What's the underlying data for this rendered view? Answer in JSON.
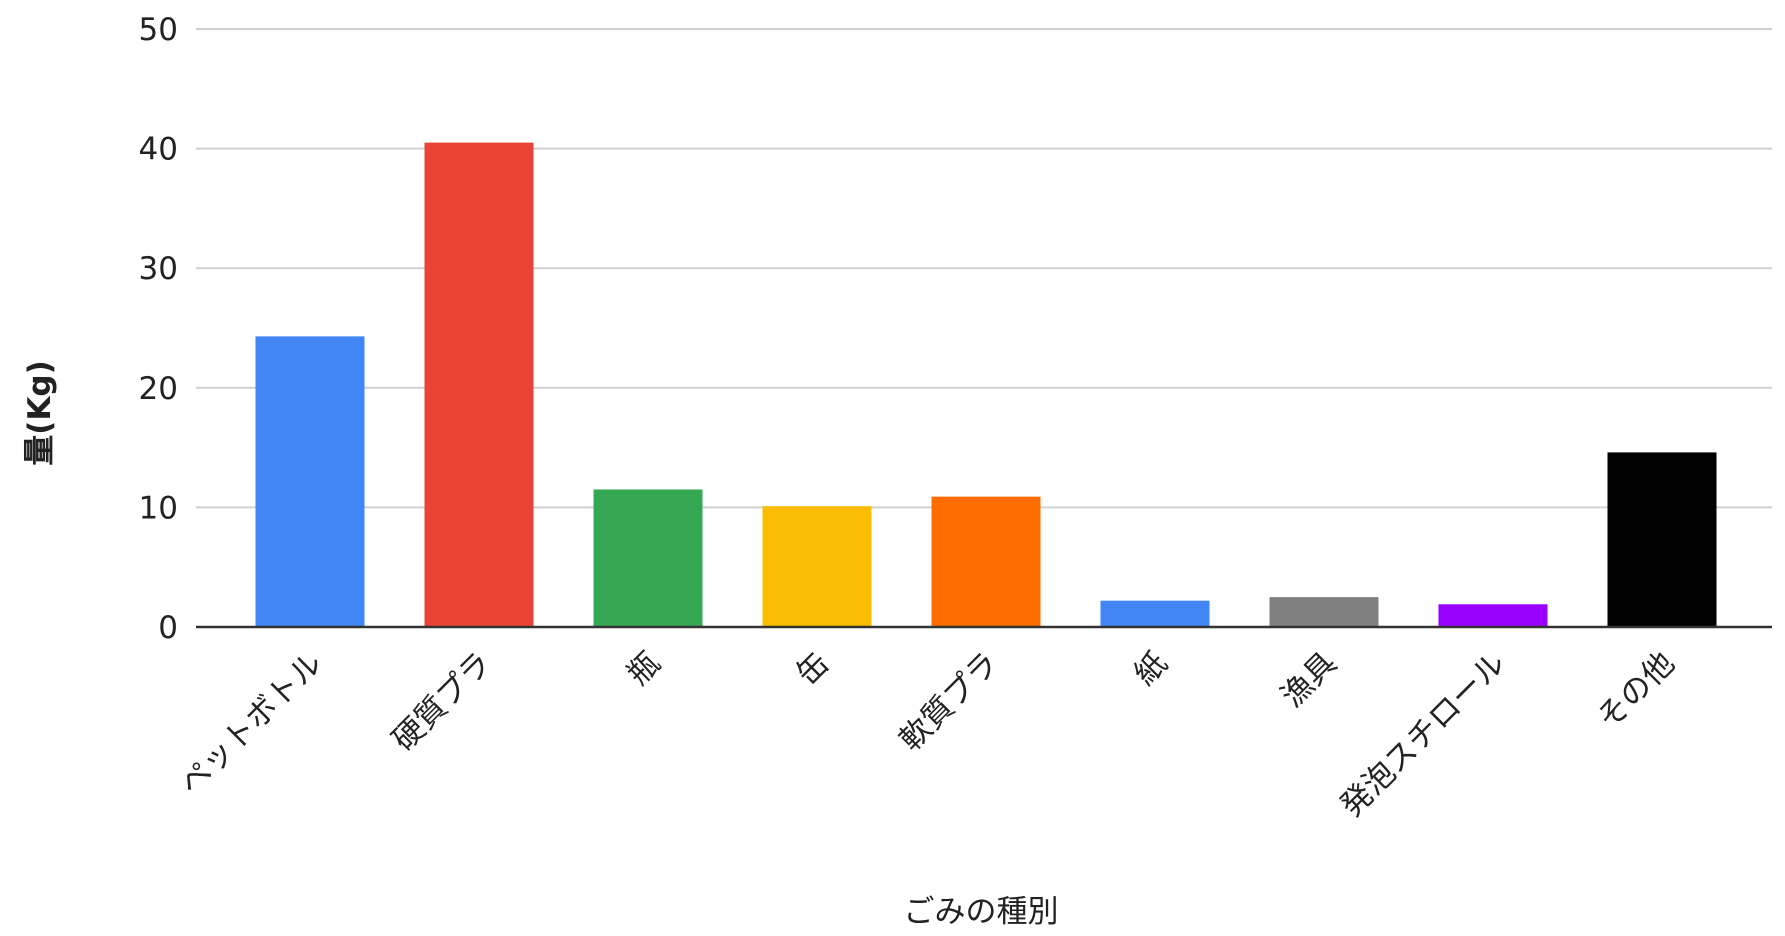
{
  "chart_data": {
    "type": "bar",
    "title": "",
    "xlabel": "ごみの種別",
    "ylabel": "量(Kg)",
    "ylim": [
      0,
      50
    ],
    "yticks": [
      0,
      10,
      20,
      30,
      40,
      50
    ],
    "grid": true,
    "legend": "none",
    "categories": [
      "ペットボトル",
      "硬質プラ",
      "瓶",
      "缶",
      "軟質プラ",
      "紙",
      "漁具",
      "発泡スチロール",
      "その他"
    ],
    "values": [
      24.3,
      40.5,
      11.5,
      10.1,
      10.9,
      2.2,
      2.5,
      1.9,
      14.6
    ],
    "colors": [
      "#4285f4",
      "#ea4335",
      "#34a853",
      "#fbbc04",
      "#ff6d01",
      "#4285f4",
      "#808080",
      "#9900ff",
      "#000000"
    ]
  }
}
